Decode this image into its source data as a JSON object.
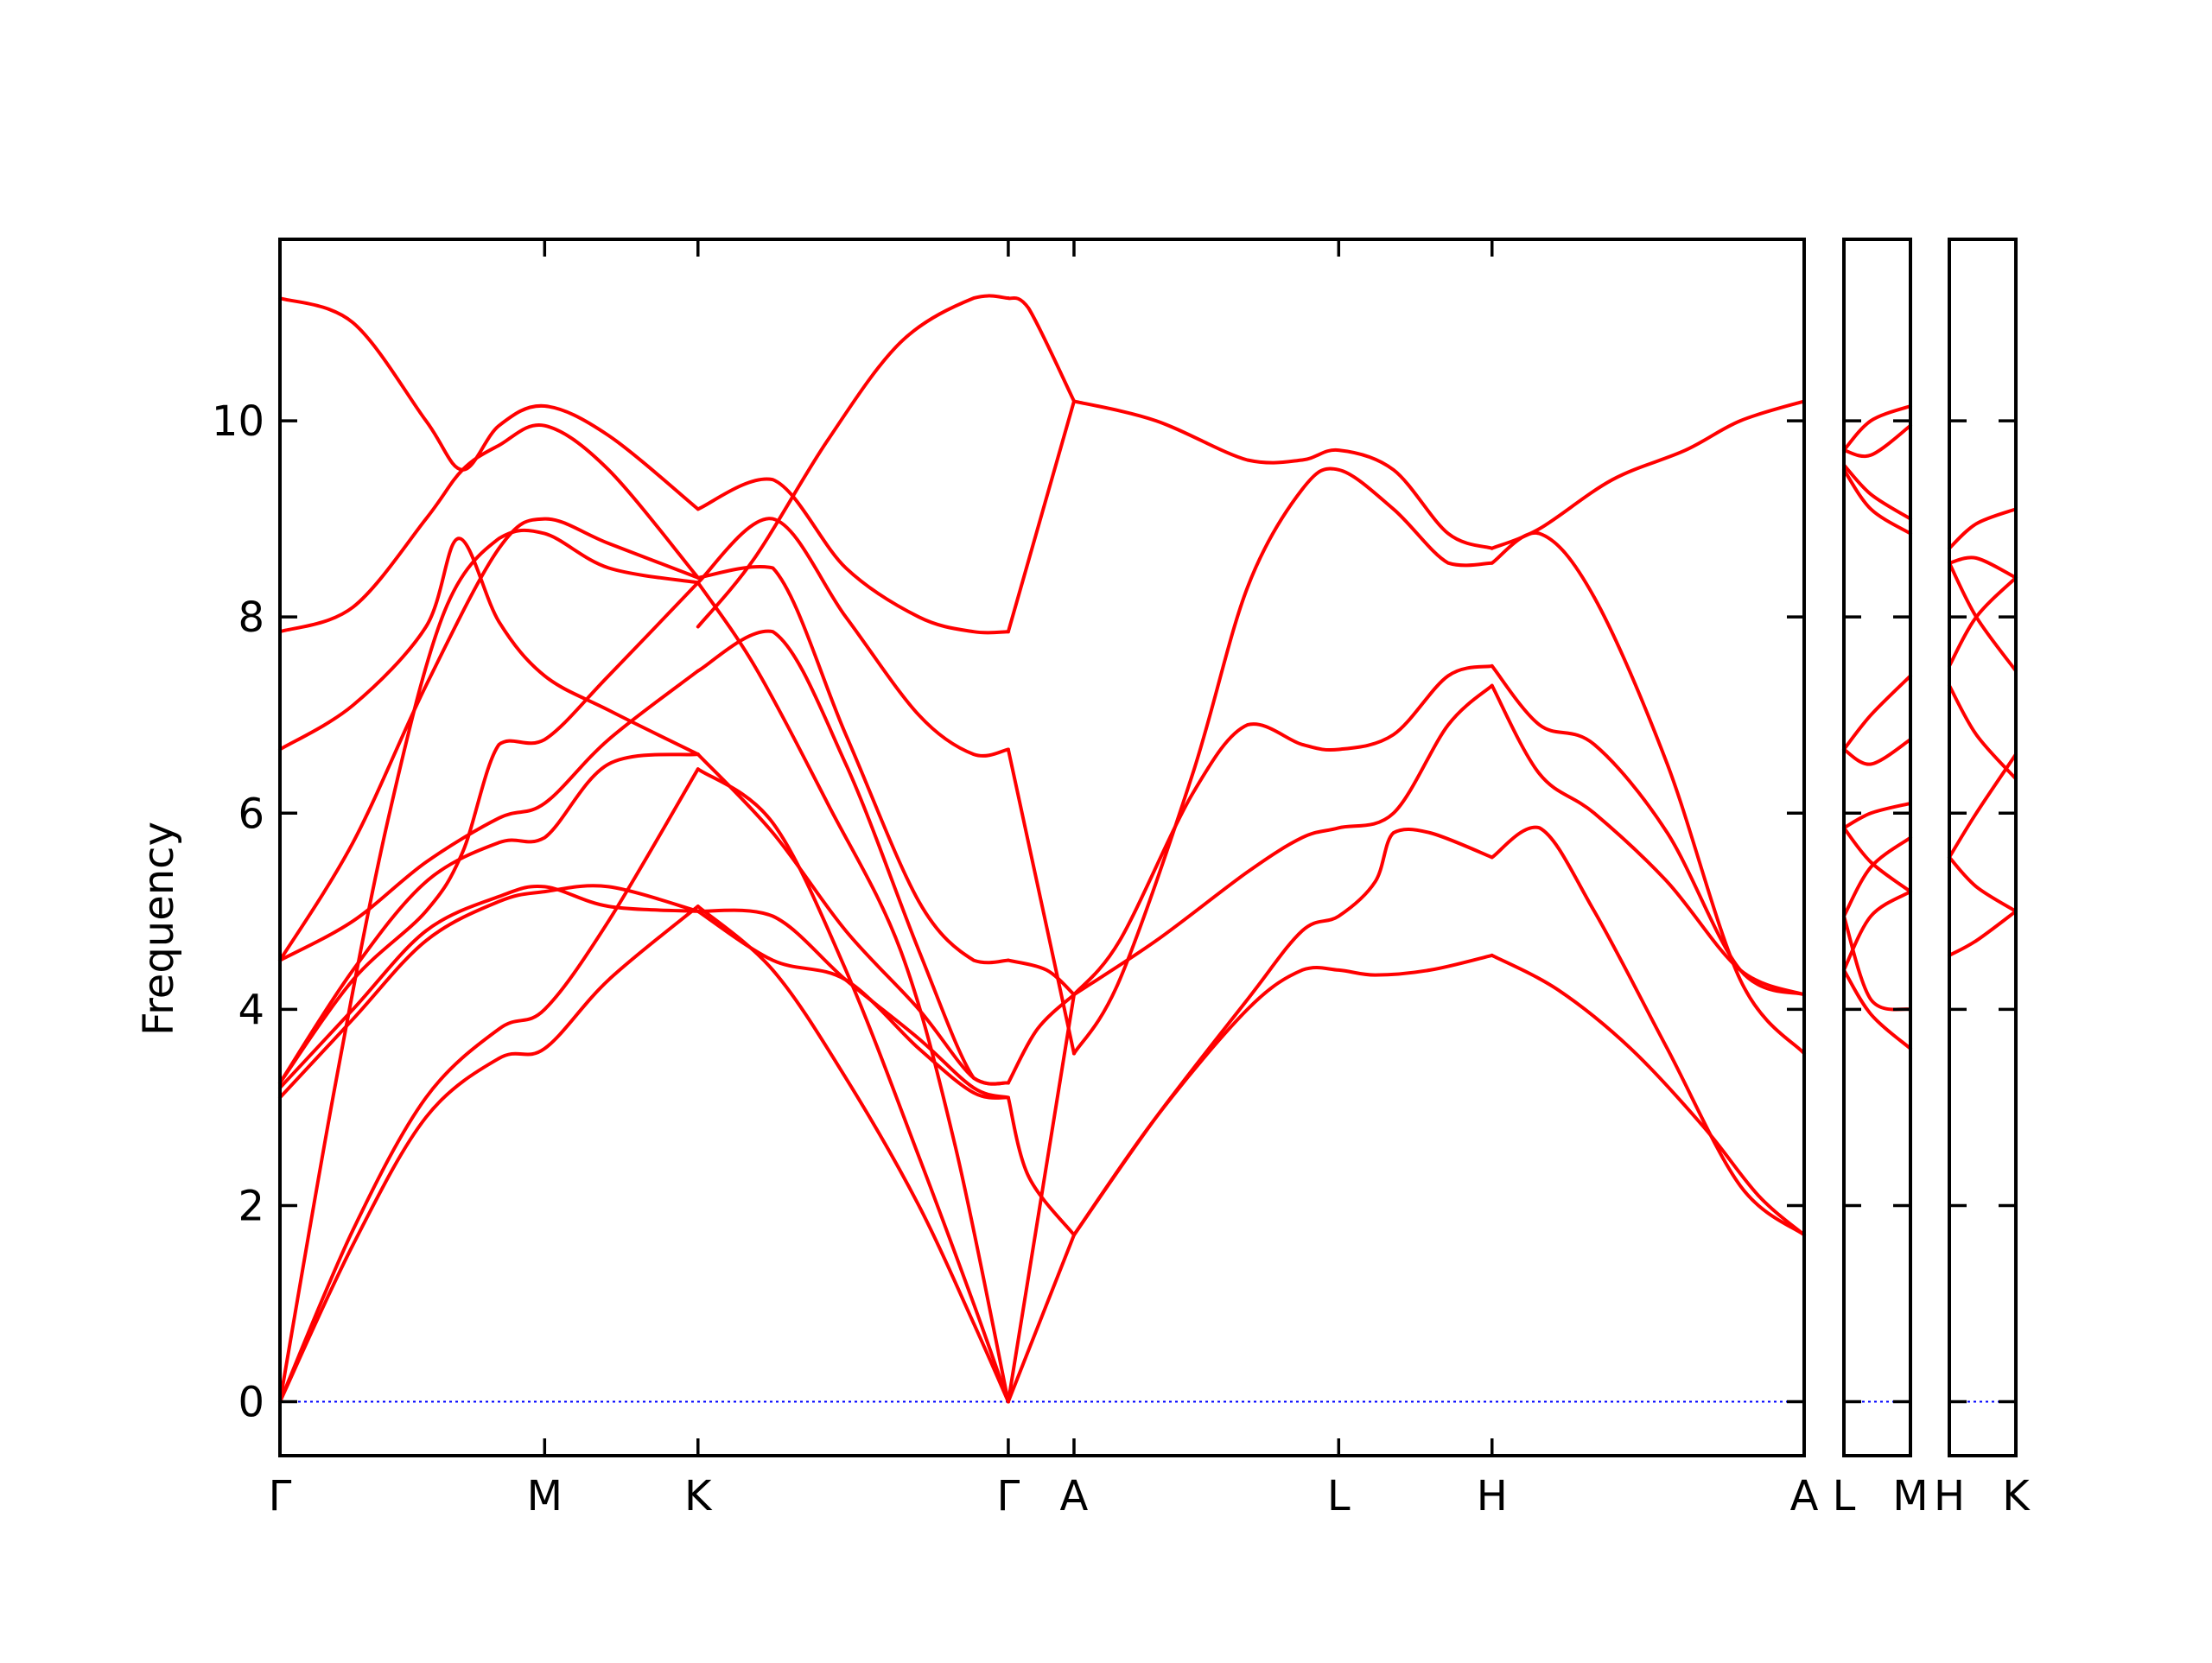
{
  "chart_data": {
    "type": "line",
    "title": "",
    "xlabel": "",
    "ylabel": "Frequency",
    "ylim": [
      -0.55,
      11.85
    ],
    "yticks": [
      0,
      2,
      4,
      6,
      8,
      10
    ],
    "grid": false,
    "legend": "none",
    "colors": {
      "bands": "#ff0000",
      "zero_line": "#0000ff"
    },
    "segments": [
      {
        "x_range": [
          0,
          8.35
        ],
        "xticks": [
          {
            "x": 0.0,
            "label": "Γ"
          },
          {
            "x": 1.45,
            "label": "M"
          },
          {
            "x": 2.29,
            "label": "K"
          },
          {
            "x": 3.99,
            "label": "Γ"
          },
          {
            "x": 4.35,
            "label": "A"
          },
          {
            "x": 5.8,
            "label": "L"
          },
          {
            "x": 6.64,
            "label": "H"
          },
          {
            "x": 8.35,
            "label": "A"
          }
        ],
        "series": [
          {
            "x": [
              0,
              0.4,
              0.8,
              1.2,
              1.45,
              1.8,
              2.29
            ],
            "y": [
              0.0,
              1.6,
              2.9,
              3.5,
              3.6,
              4.3,
              5.05
            ]
          },
          {
            "x": [
              0,
              0.4,
              0.8,
              1.2,
              1.45,
              1.8,
              2.29
            ],
            "y": [
              0.0,
              1.75,
              3.1,
              3.8,
              4.0,
              4.9,
              6.45
            ]
          },
          {
            "x": [
              0,
              0.3,
              0.6,
              0.9,
              1.2,
              1.45,
              1.8,
              2.29
            ],
            "y": [
              0.0,
              3.2,
              6.0,
              8.05,
              8.8,
              8.85,
              8.5,
              8.35
            ]
          },
          {
            "x": [
              0,
              0.4,
              0.8,
              1.2,
              1.45,
              1.8,
              2.29
            ],
            "y": [
              3.1,
              3.9,
              4.7,
              5.1,
              5.2,
              5.25,
              5.0
            ]
          },
          {
            "x": [
              0,
              0.4,
              0.8,
              1.2,
              1.45,
              1.8,
              2.29
            ],
            "y": [
              3.2,
              4.0,
              4.8,
              5.15,
              5.25,
              5.05,
              5.0
            ]
          },
          {
            "x": [
              0,
              0.4,
              0.8,
              1.0,
              1.2,
              1.45,
              1.8,
              2.29
            ],
            "y": [
              3.25,
              4.3,
              5.0,
              5.6,
              6.7,
              6.75,
              7.4,
              8.35
            ]
          },
          {
            "x": [
              0,
              0.4,
              0.8,
              1.2,
              1.45,
              1.8,
              2.29
            ],
            "y": [
              3.25,
              4.4,
              5.3,
              5.7,
              5.75,
              6.5,
              6.6
            ]
          },
          {
            "x": [
              0,
              0.4,
              0.8,
              1.2,
              1.45,
              1.8,
              2.29
            ],
            "y": [
              4.5,
              4.9,
              5.5,
              5.95,
              6.1,
              6.75,
              7.45
            ]
          },
          {
            "x": [
              0,
              0.4,
              0.8,
              1.2,
              1.45,
              1.8,
              2.29
            ],
            "y": [
              4.5,
              5.7,
              7.3,
              8.7,
              9.0,
              8.75,
              8.4
            ]
          },
          {
            "x": [
              0,
              0.4,
              0.8,
              0.98,
              1.2,
              1.45,
              1.8,
              2.29
            ],
            "y": [
              6.65,
              7.1,
              7.9,
              8.8,
              7.95,
              7.4,
              7.05,
              6.6
            ]
          },
          {
            "x": [
              0,
              0.4,
              0.8,
              1.0,
              1.2,
              1.45,
              1.8,
              2.29
            ],
            "y": [
              7.85,
              8.1,
              9.0,
              9.5,
              9.75,
              9.95,
              9.5,
              8.4
            ]
          },
          {
            "x": [
              0,
              0.4,
              0.8,
              1.0,
              1.2,
              1.45,
              1.8,
              2.29
            ],
            "y": [
              11.25,
              11.0,
              10.0,
              9.5,
              9.95,
              10.15,
              9.85,
              9.1
            ]
          },
          {
            "x": [
              2.29,
              2.7,
              3.1,
              3.5,
              3.8,
              3.99
            ],
            "y": [
              5.05,
              4.4,
              3.3,
              2.0,
              0.8,
              0.0
            ]
          },
          {
            "x": [
              2.29,
              2.7,
              3.1,
              3.5,
              3.8,
              3.99
            ],
            "y": [
              6.45,
              5.9,
              4.4,
              2.5,
              1.0,
              0.0
            ]
          },
          {
            "x": [
              2.29,
              2.6,
              3.0,
              3.4,
              3.7,
              3.99
            ],
            "y": [
              8.35,
              7.5,
              6.1,
              4.6,
              2.6,
              0.0
            ]
          },
          {
            "x": [
              2.29,
              2.7,
              3.1,
              3.5,
              3.8,
              3.99
            ],
            "y": [
              5.0,
              4.5,
              4.3,
              3.6,
              3.15,
              3.1
            ]
          },
          {
            "x": [
              2.29,
              2.7,
              3.1,
              3.5,
              3.8,
              3.99
            ],
            "y": [
              5.0,
              4.95,
              4.3,
              3.7,
              3.2,
              3.1
            ]
          },
          {
            "x": [
              2.29,
              2.7,
              3.1,
              3.5,
              3.8,
              3.99
            ],
            "y": [
              6.6,
              5.8,
              4.8,
              4.0,
              3.3,
              3.25
            ]
          },
          {
            "x": [
              2.29,
              2.7,
              3.1,
              3.5,
              3.8,
              3.99
            ],
            "y": [
              7.45,
              7.85,
              6.5,
              4.6,
              3.3,
              3.25
            ]
          },
          {
            "x": [
              2.29,
              2.7,
              3.1,
              3.5,
              3.8,
              3.99
            ],
            "y": [
              8.4,
              8.5,
              6.8,
              5.1,
              4.5,
              4.5
            ]
          },
          {
            "x": [
              2.29,
              2.7,
              3.1,
              3.5,
              3.8,
              3.99
            ],
            "y": [
              8.35,
              9.0,
              8.0,
              7.0,
              6.6,
              6.65
            ]
          },
          {
            "x": [
              2.29,
              2.7,
              3.1,
              3.5,
              3.8,
              3.99
            ],
            "y": [
              9.1,
              9.4,
              8.5,
              8.0,
              7.85,
              7.85
            ]
          },
          {
            "x": [
              2.29,
              2.6,
              3.0,
              3.4,
              3.8,
              3.99
            ],
            "y": [
              7.9,
              8.6,
              9.8,
              10.8,
              11.25,
              11.25
            ]
          },
          {
            "x": [
              3.99,
              4.35
            ],
            "y": [
              0.0,
              1.7
            ]
          },
          {
            "x": [
              3.99,
              4.1,
              4.35
            ],
            "y": [
              3.1,
              2.3,
              1.7
            ]
          },
          {
            "x": [
              3.99,
              4.35
            ],
            "y": [
              0.0,
              4.15
            ]
          },
          {
            "x": [
              3.99,
              4.15,
              4.35
            ],
            "y": [
              3.25,
              3.8,
              4.15
            ]
          },
          {
            "x": [
              3.99,
              4.2,
              4.35
            ],
            "y": [
              4.5,
              4.4,
              4.15
            ]
          },
          {
            "x": [
              3.99,
              4.35
            ],
            "y": [
              6.65,
              3.55
            ]
          },
          {
            "x": [
              3.99,
              4.35
            ],
            "y": [
              7.85,
              10.2
            ]
          },
          {
            "x": [
              3.99,
              4.1,
              4.35
            ],
            "y": [
              11.25,
              11.15,
              10.2
            ]
          },
          {
            "x": [
              4.35,
              4.8,
              5.3,
              5.6,
              5.8,
              6.0,
              6.3,
              6.64
            ],
            "y": [
              1.7,
              2.9,
              4.0,
              4.4,
              4.4,
              4.35,
              4.4,
              4.55
            ]
          },
          {
            "x": [
              4.35,
              4.8,
              5.3,
              5.6,
              5.8,
              6.0,
              6.1,
              6.3,
              6.64
            ],
            "y": [
              1.7,
              2.9,
              4.1,
              4.8,
              4.95,
              5.3,
              5.8,
              5.8,
              5.55
            ]
          },
          {
            "x": [
              4.35,
              4.8,
              5.3,
              5.6,
              5.8,
              6.1,
              6.4,
              6.64
            ],
            "y": [
              4.15,
              4.7,
              5.4,
              5.75,
              5.85,
              6.0,
              6.9,
              7.3
            ]
          },
          {
            "x": [
              4.35,
              4.6,
              5.0,
              5.3,
              5.6,
              5.8,
              6.1,
              6.4,
              6.64
            ],
            "y": [
              4.15,
              4.7,
              6.2,
              6.9,
              6.7,
              6.65,
              6.8,
              7.4,
              7.5
            ]
          },
          {
            "x": [
              4.35,
              4.6,
              5.0,
              5.3,
              5.6,
              5.8,
              6.1,
              6.4,
              6.64
            ],
            "y": [
              3.55,
              4.3,
              6.4,
              8.3,
              9.3,
              9.5,
              9.1,
              8.55,
              8.55
            ]
          },
          {
            "x": [
              4.35,
              4.8,
              5.3,
              5.6,
              5.8,
              6.1,
              6.4,
              6.64
            ],
            "y": [
              10.2,
              10.0,
              9.6,
              9.6,
              9.7,
              9.5,
              8.85,
              8.7
            ]
          },
          {
            "x": [
              6.64,
              7.0,
              7.4,
              7.8,
              8.1,
              8.35
            ],
            "y": [
              4.55,
              4.2,
              3.6,
              2.8,
              2.1,
              1.7
            ]
          },
          {
            "x": [
              6.64,
              6.9,
              7.2,
              7.6,
              8.0,
              8.35
            ],
            "y": [
              5.55,
              5.85,
              5.0,
              3.6,
              2.2,
              1.7
            ]
          },
          {
            "x": [
              6.64,
              6.9,
              7.2,
              7.6,
              8.0,
              8.35
            ],
            "y": [
              7.3,
              6.4,
              6.0,
              5.3,
              4.4,
              4.15
            ]
          },
          {
            "x": [
              6.64,
              6.9,
              7.2,
              7.6,
              8.0,
              8.35
            ],
            "y": [
              7.5,
              6.9,
              6.7,
              5.8,
              4.4,
              4.15
            ]
          },
          {
            "x": [
              6.64,
              6.9,
              7.2,
              7.6,
              8.0,
              8.35
            ],
            "y": [
              8.55,
              8.85,
              8.2,
              6.5,
              4.3,
              3.55
            ]
          },
          {
            "x": [
              6.64,
              6.9,
              7.3,
              7.7,
              8.0,
              8.35
            ],
            "y": [
              8.7,
              8.9,
              9.4,
              9.7,
              10.0,
              10.2
            ]
          }
        ]
      },
      {
        "x_range": [
          0,
          0.37
        ],
        "xticks": [
          {
            "x": 0.0,
            "label": "L"
          },
          {
            "x": 0.37,
            "label": "M"
          }
        ],
        "series": [
          {
            "x": [
              0,
              0.15,
              0.37
            ],
            "y": [
              4.4,
              3.95,
              3.6
            ]
          },
          {
            "x": [
              0,
              0.15,
              0.37
            ],
            "y": [
              4.95,
              4.1,
              4.0
            ]
          },
          {
            "x": [
              0,
              0.15,
              0.37
            ],
            "y": [
              4.4,
              4.95,
              5.2
            ]
          },
          {
            "x": [
              0,
              0.15,
              0.37
            ],
            "y": [
              4.95,
              5.45,
              5.75
            ]
          },
          {
            "x": [
              0,
              0.15,
              0.37
            ],
            "y": [
              5.85,
              5.5,
              5.2
            ]
          },
          {
            "x": [
              0,
              0.15,
              0.37
            ],
            "y": [
              5.85,
              6.0,
              6.1
            ]
          },
          {
            "x": [
              0,
              0.15,
              0.37
            ],
            "y": [
              6.65,
              6.5,
              6.75
            ]
          },
          {
            "x": [
              0,
              0.15,
              0.37
            ],
            "y": [
              6.65,
              7.0,
              7.4
            ]
          },
          {
            "x": [
              0,
              0.15,
              0.37
            ],
            "y": [
              9.5,
              9.1,
              8.85
            ]
          },
          {
            "x": [
              0,
              0.15,
              0.37
            ],
            "y": [
              9.55,
              9.25,
              9.0
            ]
          },
          {
            "x": [
              0,
              0.15,
              0.37
            ],
            "y": [
              9.7,
              9.65,
              9.95
            ]
          },
          {
            "x": [
              0,
              0.15,
              0.37
            ],
            "y": [
              9.7,
              10.0,
              10.15
            ]
          }
        ]
      },
      {
        "x_range": [
          0,
          0.37
        ],
        "xticks": [
          {
            "x": 0.0,
            "label": "H"
          },
          {
            "x": 0.37,
            "label": "K"
          }
        ],
        "series": [
          {
            "x": [
              0,
              0.15,
              0.37
            ],
            "y": [
              4.55,
              4.7,
              5.0
            ]
          },
          {
            "x": [
              0,
              0.15,
              0.37
            ],
            "y": [
              5.55,
              5.25,
              5.0
            ]
          },
          {
            "x": [
              0,
              0.15,
              0.37
            ],
            "y": [
              5.55,
              6.0,
              6.6
            ]
          },
          {
            "x": [
              0,
              0.15,
              0.37
            ],
            "y": [
              7.3,
              6.8,
              6.35
            ]
          },
          {
            "x": [
              0,
              0.15,
              0.37
            ],
            "y": [
              7.5,
              8.0,
              8.4
            ]
          },
          {
            "x": [
              0,
              0.15,
              0.37
            ],
            "y": [
              8.55,
              8.0,
              7.45
            ]
          },
          {
            "x": [
              0,
              0.15,
              0.37
            ],
            "y": [
              8.55,
              8.6,
              8.4
            ]
          },
          {
            "x": [
              0,
              0.15,
              0.37
            ],
            "y": [
              8.7,
              8.95,
              9.1
            ]
          }
        ]
      }
    ]
  }
}
